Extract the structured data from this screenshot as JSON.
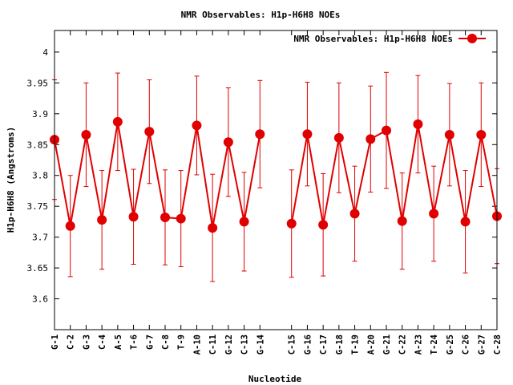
{
  "chart_data": {
    "type": "line",
    "title": "NMR Observables: H1p-H6H8 NOEs",
    "xlabel": "Nucleotide",
    "ylabel": "H1p-H6H8 (Angstroms)",
    "ylim": [
      3.55,
      4.035
    ],
    "yticks": [
      "3.6",
      "3.65",
      "3.7",
      "3.75",
      "3.8",
      "3.85",
      "3.9",
      "3.95",
      "4"
    ],
    "legend_position": "top-right",
    "series_color": "#e00000",
    "categories": [
      "G-1",
      "C-2",
      "G-3",
      "C-4",
      "A-5",
      "T-6",
      "G-7",
      "C-8",
      "T-9",
      "A-10",
      "C-11",
      "G-12",
      "C-13",
      "G-14",
      "",
      "C-15",
      "G-16",
      "C-17",
      "G-18",
      "T-19",
      "A-20",
      "G-21",
      "C-22",
      "A-23",
      "T-24",
      "G-25",
      "C-26",
      "G-27",
      "C-28"
    ],
    "series": [
      {
        "name": "NMR Observables: H1p-H6H8 NOEs",
        "values": [
          3.858,
          3.718,
          3.866,
          3.728,
          3.887,
          3.733,
          3.871,
          3.732,
          3.73,
          3.881,
          3.715,
          3.854,
          3.725,
          3.867,
          null,
          3.722,
          3.867,
          3.72,
          3.861,
          3.738,
          3.859,
          3.873,
          3.726,
          3.883,
          3.738,
          3.866,
          3.725,
          3.866,
          3.734
        ],
        "error": [
          0.097,
          0.082,
          0.084,
          0.08,
          0.079,
          0.077,
          0.084,
          0.077,
          0.078,
          0.08,
          0.087,
          0.088,
          0.08,
          0.087,
          null,
          0.087,
          0.084,
          0.083,
          0.089,
          0.077,
          0.086,
          0.094,
          0.078,
          0.079,
          0.077,
          0.083,
          0.083,
          0.084,
          0.077
        ]
      }
    ]
  }
}
